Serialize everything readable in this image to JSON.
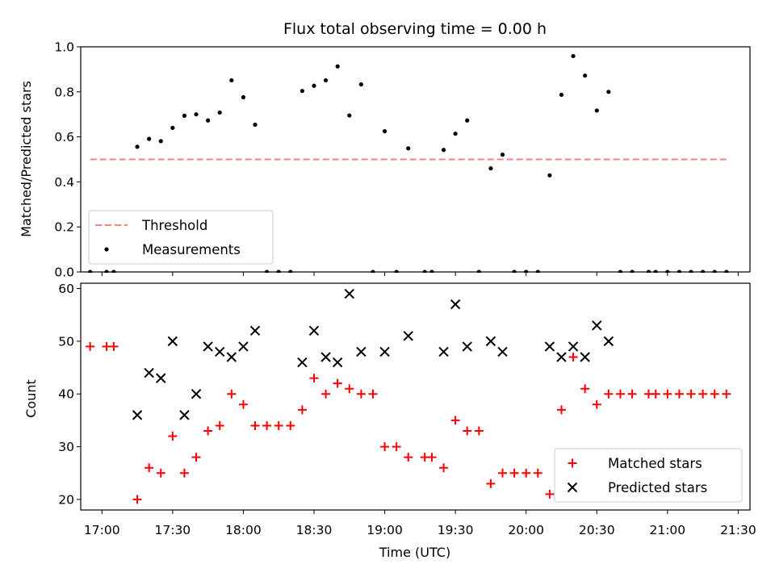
{
  "chart_data": [
    {
      "type": "scatter",
      "title": "Flux total observing time = 0.00 h",
      "ylabel": "Matched/Predicted stars",
      "xlabel": "",
      "xlim": [
        "16:51",
        "21:35"
      ],
      "ylim": [
        0,
        1.0
      ],
      "yticks": [
        0.0,
        0.2,
        0.4,
        0.6,
        0.8,
        1.0
      ],
      "ytick_labels": [
        "0.0",
        "0.2",
        "0.4",
        "0.6",
        "0.8",
        "1.0"
      ],
      "legend": {
        "placement": "lower-left",
        "entries": [
          "Threshold",
          "Measurements"
        ]
      },
      "series": [
        {
          "name": "Threshold",
          "kind": "dashed-line",
          "color": "#ff7f7f",
          "x": [
            "16:55",
            "21:25"
          ],
          "y": [
            0.5,
            0.5
          ]
        },
        {
          "name": "Measurements",
          "kind": "scatter",
          "color": "#000000",
          "x": [
            "16:55",
            "17:02",
            "17:05",
            "17:15",
            "17:20",
            "17:25",
            "17:30",
            "17:35",
            "17:40",
            "17:45",
            "17:50",
            "17:55",
            "18:00",
            "18:05",
            "18:10",
            "18:15",
            "18:20",
            "18:25",
            "18:30",
            "18:35",
            "18:40",
            "18:45",
            "18:50",
            "18:55",
            "19:00",
            "19:05",
            "19:10",
            "19:17",
            "19:20",
            "19:25",
            "19:30",
            "19:35",
            "19:40",
            "19:45",
            "19:50",
            "19:55",
            "20:00",
            "20:05",
            "20:10",
            "20:15",
            "20:20",
            "20:25",
            "20:30",
            "20:35",
            "20:40",
            "20:45",
            "20:52",
            "20:55",
            "21:00",
            "21:05",
            "21:10",
            "21:15",
            "21:20",
            "21:25"
          ],
          "y": [
            0,
            0,
            0,
            0.556,
            0.591,
            0.581,
            0.64,
            0.694,
            0.7,
            0.673,
            0.708,
            0.851,
            0.776,
            0.654,
            0,
            0,
            0,
            0.804,
            0.827,
            0.851,
            0.913,
            0.695,
            0.833,
            0,
            0.625,
            0,
            0.549,
            0,
            0,
            0.542,
            0.614,
            0.673,
            0,
            0.46,
            0.521,
            0,
            0,
            0,
            0.429,
            0.787,
            0.959,
            0.872,
            0.717,
            0.8,
            0,
            0,
            0,
            0,
            0,
            0,
            0,
            0,
            0,
            0
          ]
        }
      ]
    },
    {
      "type": "scatter",
      "title": "",
      "ylabel": "Count",
      "xlabel": "Time (UTC)",
      "xlim": [
        "16:51",
        "21:35"
      ],
      "ylim": [
        18,
        61
      ],
      "yticks": [
        20,
        30,
        40,
        50,
        60
      ],
      "ytick_labels": [
        "20",
        "30",
        "40",
        "50",
        "60"
      ],
      "xticks": [
        "17:00",
        "17:30",
        "18:00",
        "18:30",
        "19:00",
        "19:30",
        "20:00",
        "20:30",
        "21:00",
        "21:30"
      ],
      "legend": {
        "placement": "lower-right",
        "entries": [
          "Matched stars",
          "Predicted stars"
        ]
      },
      "series": [
        {
          "name": "Matched stars",
          "marker": "+",
          "color": "#ff0000",
          "x": [
            "16:55",
            "17:02",
            "17:05",
            "17:15",
            "17:20",
            "17:25",
            "17:30",
            "17:35",
            "17:40",
            "17:45",
            "17:50",
            "17:55",
            "18:00",
            "18:05",
            "18:10",
            "18:15",
            "18:20",
            "18:25",
            "18:30",
            "18:35",
            "18:40",
            "18:45",
            "18:50",
            "18:55",
            "19:00",
            "19:05",
            "19:10",
            "19:17",
            "19:20",
            "19:25",
            "19:30",
            "19:35",
            "19:40",
            "19:45",
            "19:50",
            "19:55",
            "20:00",
            "20:05",
            "20:10",
            "20:15",
            "20:20",
            "20:25",
            "20:30",
            "20:35",
            "20:40",
            "20:45",
            "20:52",
            "20:55",
            "21:00",
            "21:05",
            "21:10",
            "21:15",
            "21:20",
            "21:25"
          ],
          "y": [
            49,
            49,
            49,
            20,
            26,
            25,
            32,
            25,
            28,
            33,
            34,
            40,
            38,
            34,
            34,
            34,
            34,
            37,
            43,
            40,
            42,
            41,
            40,
            40,
            30,
            30,
            28,
            28,
            28,
            26,
            35,
            33,
            33,
            23,
            25,
            25,
            25,
            25,
            21,
            37,
            47,
            41,
            38,
            40,
            40,
            40,
            40,
            40,
            40,
            40,
            40,
            40,
            40,
            40
          ]
        },
        {
          "name": "Predicted stars",
          "marker": "x",
          "color": "#000000",
          "x": [
            "17:15",
            "17:20",
            "17:25",
            "17:30",
            "17:35",
            "17:40",
            "17:45",
            "17:50",
            "17:55",
            "18:00",
            "18:05",
            "18:25",
            "18:30",
            "18:35",
            "18:40",
            "18:45",
            "18:50",
            "19:00",
            "19:10",
            "19:25",
            "19:30",
            "19:35",
            "19:45",
            "19:50",
            "20:10",
            "20:15",
            "20:20",
            "20:25",
            "20:30",
            "20:35"
          ],
          "y": [
            36,
            44,
            43,
            50,
            36,
            40,
            49,
            48,
            47,
            49,
            52,
            46,
            52,
            47,
            46,
            59,
            48,
            48,
            51,
            48,
            57,
            49,
            50,
            48,
            49,
            47,
            49,
            47,
            53,
            50
          ]
        }
      ]
    }
  ]
}
